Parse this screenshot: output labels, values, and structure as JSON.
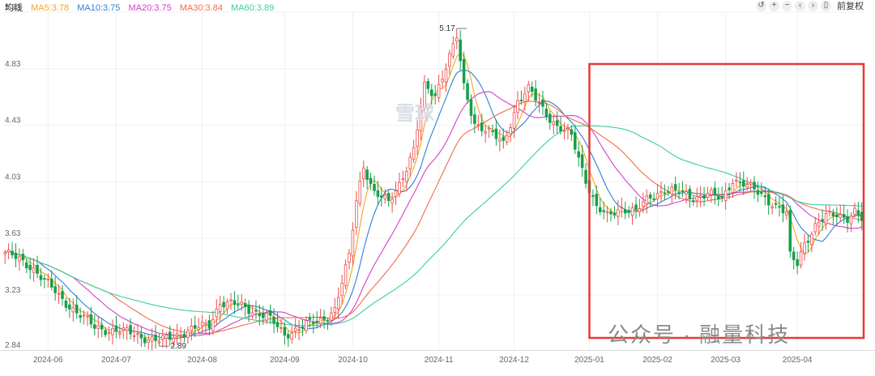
{
  "legend": {
    "title": "均线",
    "items": [
      {
        "label": "MA5:3.78",
        "color": "#f5a623"
      },
      {
        "label": "MA10:3.75",
        "color": "#2f7fd6"
      },
      {
        "label": "MA20:3.75",
        "color": "#d43fc8"
      },
      {
        "label": "MA30:3.84",
        "color": "#f26b4f"
      },
      {
        "label": "MA60:3.89",
        "color": "#3ccf9a"
      }
    ]
  },
  "toolbar": {
    "icons": [
      "undo-icon",
      "zoom-in-icon",
      "zoom-out-icon",
      "pan-left-icon",
      "pan-right-icon",
      "fullscreen-icon"
    ],
    "adjust_label": "前复权"
  },
  "watermark": {
    "logo_text": "雪球",
    "text": "公众号 · 融量科技"
  },
  "colors": {
    "up": "#ee4b4b",
    "down": "#15a04a",
    "grid": "#f0f0f0",
    "highlight": "#e53935"
  },
  "chart_data": {
    "type": "candlestick",
    "ylim": [
      2.84,
      5.23
    ],
    "yticks": [
      "5.23",
      "4.83",
      "4.43",
      "4.03",
      "3.63",
      "3.23",
      "2.84"
    ],
    "xticks": [
      {
        "label": "2024-06",
        "bar": 12
      },
      {
        "label": "2024-07",
        "bar": 31
      },
      {
        "label": "2024-08",
        "bar": 55
      },
      {
        "label": "2024-09",
        "bar": 78
      },
      {
        "label": "2024-10",
        "bar": 97
      },
      {
        "label": "2024-11",
        "bar": 121
      },
      {
        "label": "2024-12",
        "bar": 142
      },
      {
        "label": "2025-01",
        "bar": 163
      },
      {
        "label": "2025-02",
        "bar": 182
      },
      {
        "label": "2025-03",
        "bar": 201
      },
      {
        "label": "2025-04",
        "bar": 221
      }
    ],
    "annotations": [
      {
        "label": "5.17",
        "type": "max",
        "bar": 126
      },
      {
        "label": "2.89",
        "type": "min",
        "bar": 43
      }
    ],
    "highlight_box": {
      "from_bar": 164,
      "to_bar": 240
    },
    "close_anchors": [
      [
        0,
        3.53
      ],
      [
        8,
        3.42
      ],
      [
        15,
        3.22
      ],
      [
        25,
        3.0
      ],
      [
        35,
        2.96
      ],
      [
        43,
        2.9
      ],
      [
        50,
        2.97
      ],
      [
        57,
        3.02
      ],
      [
        60,
        3.18
      ],
      [
        66,
        3.15
      ],
      [
        73,
        3.08
      ],
      [
        78,
        2.95
      ],
      [
        82,
        3.0
      ],
      [
        88,
        3.05
      ],
      [
        92,
        3.13
      ],
      [
        96,
        3.5
      ],
      [
        98,
        3.9
      ],
      [
        100,
        4.15
      ],
      [
        103,
        3.95
      ],
      [
        107,
        3.88
      ],
      [
        110,
        4.02
      ],
      [
        114,
        4.25
      ],
      [
        117,
        4.7
      ],
      [
        120,
        4.65
      ],
      [
        123,
        4.85
      ],
      [
        126,
        5.05
      ],
      [
        128,
        4.7
      ],
      [
        131,
        4.45
      ],
      [
        135,
        4.38
      ],
      [
        139,
        4.3
      ],
      [
        143,
        4.6
      ],
      [
        146,
        4.68
      ],
      [
        150,
        4.55
      ],
      [
        154,
        4.42
      ],
      [
        158,
        4.35
      ],
      [
        162,
        4.05
      ],
      [
        165,
        3.85
      ],
      [
        168,
        3.78
      ],
      [
        172,
        3.85
      ],
      [
        176,
        3.82
      ],
      [
        180,
        3.92
      ],
      [
        184,
        3.98
      ],
      [
        188,
        3.95
      ],
      [
        192,
        3.92
      ],
      [
        196,
        3.95
      ],
      [
        200,
        3.9
      ],
      [
        203,
        4.05
      ],
      [
        206,
        4.02
      ],
      [
        210,
        3.95
      ],
      [
        213,
        3.9
      ],
      [
        216,
        3.85
      ],
      [
        218,
        3.8
      ],
      [
        219,
        3.5
      ],
      [
        221,
        3.45
      ],
      [
        223,
        3.6
      ],
      [
        226,
        3.72
      ],
      [
        229,
        3.78
      ],
      [
        232,
        3.8
      ],
      [
        235,
        3.78
      ],
      [
        237,
        3.82
      ],
      [
        239,
        3.76
      ]
    ]
  }
}
